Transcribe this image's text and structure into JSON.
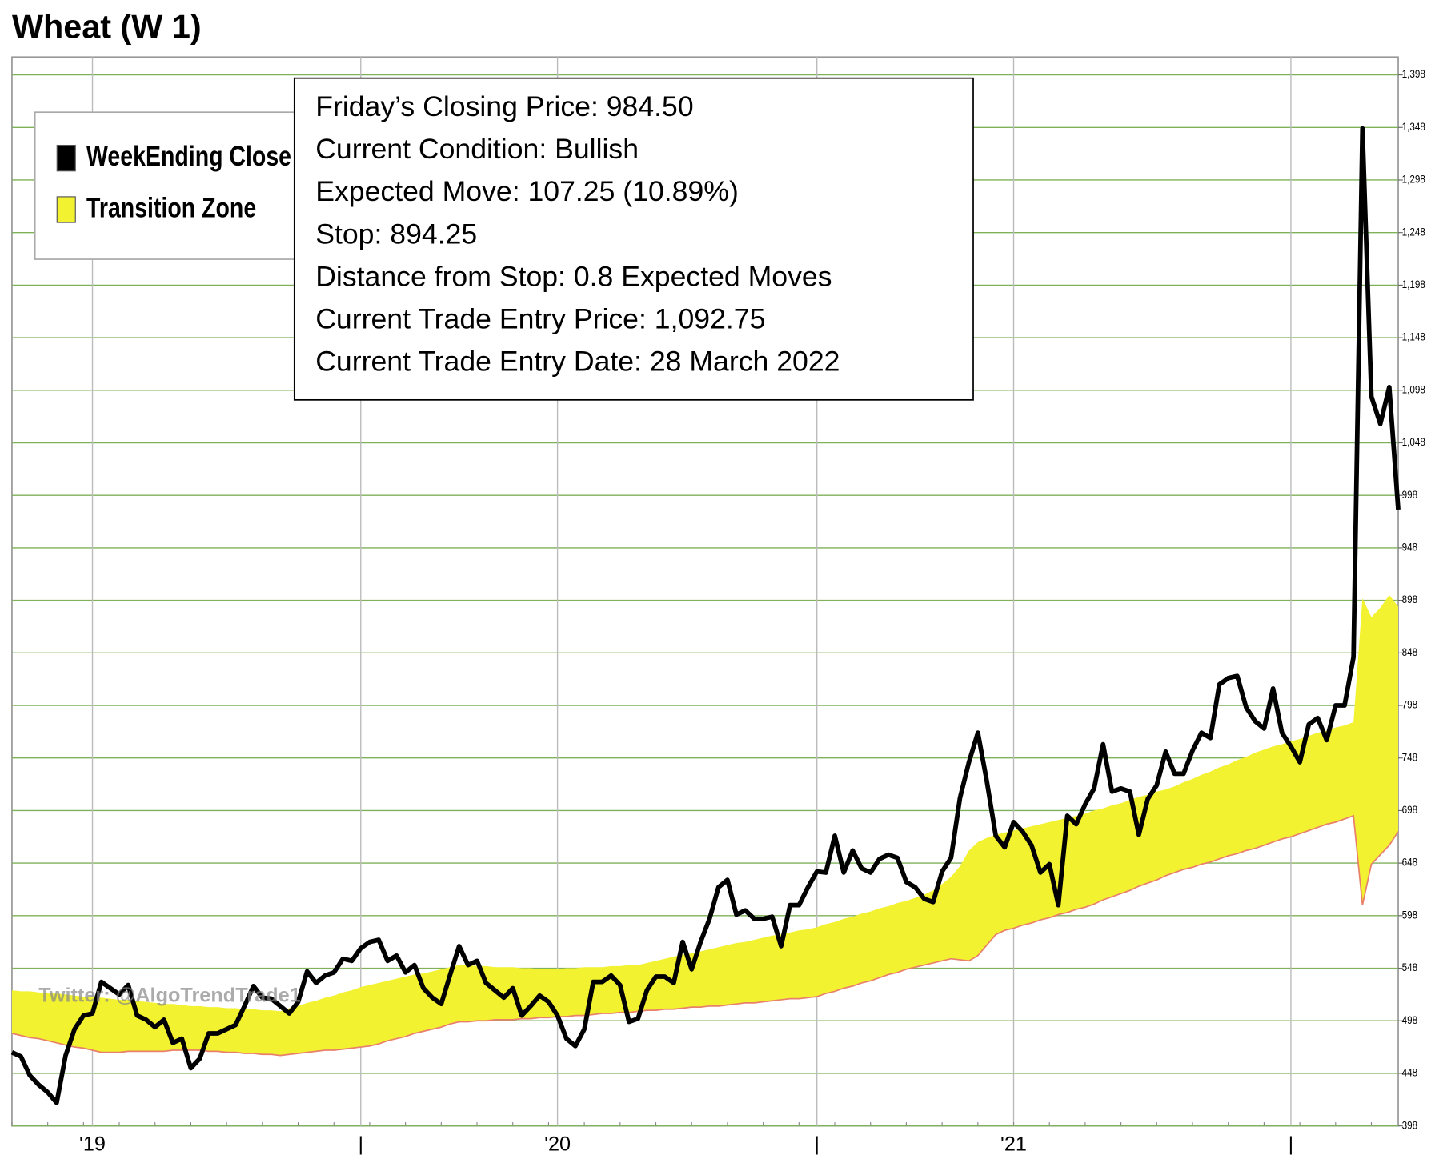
{
  "chart_data": {
    "type": "line",
    "title": "Wheat (W 1)",
    "annotations": [
      "Friday’s Closing Price: 984.50",
      "Current Condition: Bullish",
      "Expected Move: 107.25 (10.89%)",
      "Stop: 894.25",
      "Distance from Stop: 0.8 Expected Moves",
      "Current Trade Entry Price: 1,092.75",
      "Current Trade Entry Date: 28 March 2022"
    ],
    "watermark": "Twitter: @AlgoTrendTrade1",
    "categories": [
      null,
      null,
      null,
      null,
      null,
      null,
      null,
      null,
      null,
      "'19",
      null,
      null,
      null,
      null,
      null,
      null,
      null,
      null,
      null,
      null,
      null,
      null,
      null,
      null,
      null,
      null,
      null,
      null,
      null,
      null,
      null,
      null,
      null,
      null,
      null,
      null,
      null,
      null,
      null,
      "|",
      null,
      null,
      null,
      null,
      null,
      null,
      null,
      null,
      null,
      null,
      null,
      null,
      null,
      null,
      null,
      null,
      null,
      null,
      null,
      null,
      null,
      "'20",
      null,
      null,
      null,
      null,
      null,
      null,
      null,
      null,
      null,
      null,
      null,
      null,
      null,
      null,
      null,
      null,
      null,
      null,
      null,
      null,
      null,
      null,
      null,
      null,
      null,
      null,
      null,
      null,
      "|",
      null,
      null,
      null,
      null,
      null,
      null,
      null,
      null,
      null,
      null,
      null,
      null,
      null,
      null,
      null,
      null,
      null,
      null,
      null,
      null,
      null,
      "'21",
      null,
      null,
      null,
      null,
      null,
      null,
      null,
      null,
      null,
      null,
      null,
      null,
      null,
      null,
      null,
      null,
      null,
      null,
      null,
      null,
      null,
      null,
      null,
      null,
      null,
      null,
      null,
      null,
      null,
      null,
      "|",
      null,
      null,
      null,
      null,
      null,
      null,
      null,
      null,
      null,
      null,
      null,
      null
    ],
    "series": [
      {
        "name": "WeekEnding Close",
        "color": "#000000",
        "values": [
          468,
          464,
          446,
          437,
          430,
          420,
          465,
          490,
          503,
          505,
          535,
          529,
          523,
          532,
          503,
          499,
          492,
          499,
          477,
          481,
          453,
          462,
          486,
          486,
          490,
          494,
          512,
          531,
          520,
          519,
          512,
          505,
          516,
          545,
          534,
          541,
          544,
          557,
          555,
          567,
          573,
          575,
          555,
          560,
          544,
          551,
          529,
          520,
          514,
          542,
          569,
          551,
          555,
          534,
          527,
          520,
          529,
          503,
          512,
          522,
          516,
          503,
          481,
          474,
          490,
          535,
          535,
          541,
          532,
          497,
          500,
          527,
          540,
          540,
          534,
          573,
          547,
          573,
          595,
          625,
          632,
          599,
          603,
          595,
          595,
          597,
          569,
          608,
          608,
          625,
          640,
          639,
          674,
          639,
          660,
          643,
          639,
          652,
          656,
          653,
          630,
          625,
          614,
          611,
          640,
          653,
          710,
          744,
          772,
          726,
          674,
          663,
          687,
          678,
          665,
          639,
          647,
          608,
          693,
          685,
          704,
          719,
          761,
          716,
          719,
          716,
          675,
          709,
          722,
          754,
          733,
          733,
          755,
          772,
          767,
          818,
          824,
          826,
          796,
          783,
          776,
          814,
          772,
          759,
          744,
          780,
          786,
          765,
          798,
          798,
          844,
          1347,
          1092,
          1066,
          1101,
          984.5
        ]
      },
      {
        "name": "Transition Zone",
        "color": "#f2f230",
        "low_color": "#e8806a",
        "high": [
          527,
          526,
          526,
          525,
          524,
          524,
          523,
          522,
          521,
          521,
          520,
          519,
          518,
          518,
          517,
          516,
          515,
          514,
          514,
          513,
          512,
          512,
          511,
          511,
          510,
          510,
          509,
          509,
          508,
          508,
          507,
          510,
          512,
          515,
          517,
          520,
          522,
          525,
          527,
          530,
          532,
          534,
          536,
          538,
          540,
          542,
          543,
          545,
          547,
          549,
          551,
          551,
          550,
          550,
          549,
          549,
          549,
          548,
          548,
          547,
          547,
          547,
          548,
          548,
          549,
          549,
          549,
          550,
          550,
          551,
          551,
          553,
          555,
          557,
          559,
          561,
          562,
          564,
          566,
          568,
          570,
          572,
          573,
          575,
          577,
          579,
          580,
          582,
          584,
          585,
          587,
          590,
          592,
          595,
          597,
          600,
          602,
          605,
          607,
          610,
          612,
          615,
          618,
          622,
          628,
          635,
          645,
          660,
          668,
          672,
          675,
          677,
          679,
          681,
          683,
          685,
          687,
          689,
          691,
          693,
          695,
          698,
          700,
          703,
          705,
          708,
          711,
          713,
          716,
          718,
          721,
          725,
          728,
          732,
          735,
          739,
          742,
          746,
          749,
          753,
          756,
          759,
          761,
          764,
          766,
          769,
          772,
          774,
          777,
          779,
          782,
          900,
          882,
          891,
          903,
          892
        ],
        "low": [
          486,
          484,
          482,
          481,
          479,
          477,
          475,
          473,
          472,
          470,
          468,
          468,
          468,
          469,
          469,
          469,
          469,
          469,
          470,
          470,
          470,
          470,
          469,
          469,
          468,
          468,
          467,
          467,
          466,
          466,
          465,
          466,
          467,
          468,
          469,
          470,
          470,
          471,
          472,
          473,
          474,
          476,
          479,
          481,
          483,
          486,
          488,
          490,
          492,
          495,
          497,
          497,
          498,
          498,
          499,
          499,
          499,
          500,
          500,
          501,
          501,
          502,
          502,
          503,
          503,
          504,
          505,
          505,
          506,
          506,
          507,
          508,
          508,
          509,
          509,
          510,
          511,
          511,
          512,
          512,
          513,
          514,
          515,
          515,
          516,
          517,
          518,
          519,
          519,
          520,
          521,
          524,
          526,
          529,
          531,
          534,
          536,
          539,
          542,
          544,
          547,
          549,
          551,
          553,
          555,
          557,
          556,
          555,
          560,
          570,
          580,
          584,
          586,
          589,
          591,
          594,
          596,
          599,
          601,
          604,
          606,
          609,
          613,
          616,
          619,
          622,
          626,
          629,
          632,
          636,
          639,
          642,
          644,
          647,
          649,
          652,
          655,
          657,
          660,
          662,
          665,
          668,
          671,
          673,
          676,
          679,
          682,
          685,
          687,
          690,
          693,
          608,
          647,
          656,
          665,
          678
        ]
      }
    ],
    "ylim": [
      398,
      1415
    ],
    "yticks": [
      398,
      448,
      498,
      548,
      598,
      648,
      698,
      748,
      798,
      848,
      898,
      948,
      998,
      {
        "value": 1048,
        "label": "1,048"
      },
      {
        "value": 1098,
        "label": "1,098"
      },
      {
        "value": 1148,
        "label": "1,148"
      },
      {
        "value": 1198,
        "label": "1,198"
      },
      {
        "value": 1248,
        "label": "1,248"
      },
      {
        "value": 1298,
        "label": "1,298"
      },
      {
        "value": 1348,
        "label": "1,348"
      },
      {
        "value": 1398,
        "label": "1,398"
      }
    ],
    "grid": true,
    "grid_color": "#7fb05a",
    "legend": "top-left"
  }
}
